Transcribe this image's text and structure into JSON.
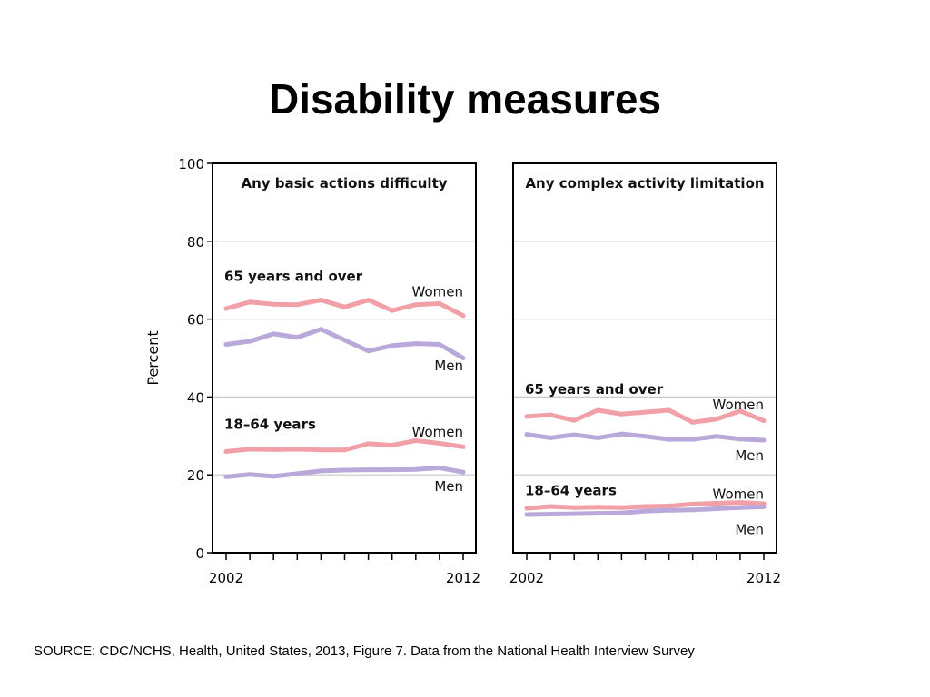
{
  "title": "Disability measures",
  "source": "SOURCE: CDC/NCHS, Health, United States, 2013, Figure 7. Data from the National Health Interview Survey",
  "colors": {
    "women": "#f0a0a6",
    "men": "#b9a9db",
    "grid": "#c8c8c8",
    "axis": "#000000"
  },
  "chart_data": [
    {
      "type": "line",
      "title": "Any basic actions difficulty",
      "ylabel": "Percent",
      "ylim": [
        0,
        100
      ],
      "yticks": [
        0,
        20,
        40,
        60,
        80,
        100
      ],
      "x": [
        2002,
        2003,
        2004,
        2005,
        2006,
        2007,
        2008,
        2009,
        2010,
        2011,
        2012
      ],
      "xtick_labels": [
        "2002",
        "2012"
      ],
      "groups": [
        {
          "label": "65 years and over",
          "label_year": 2002,
          "label_y": 71
        },
        {
          "label": "18–64 years",
          "label_year": 2002,
          "label_y": 33
        }
      ],
      "series": [
        {
          "name": "Women",
          "group": "65 years and over",
          "color_key": "women",
          "label_y": 67,
          "values": [
            62.7,
            64.4,
            63.8,
            63.7,
            64.9,
            63.1,
            64.9,
            62.2,
            63.7,
            64.0,
            60.9
          ]
        },
        {
          "name": "Men",
          "group": "65 years and over",
          "color_key": "men",
          "label_y": 48,
          "values": [
            53.5,
            54.3,
            56.2,
            55.3,
            57.4,
            54.6,
            51.8,
            53.2,
            53.7,
            53.5,
            50.0
          ]
        },
        {
          "name": "Women",
          "group": "18–64 years",
          "color_key": "women",
          "label_y": 31,
          "values": [
            26.0,
            26.6,
            26.5,
            26.6,
            26.4,
            26.4,
            28.0,
            27.6,
            28.8,
            28.1,
            27.2
          ]
        },
        {
          "name": "Men",
          "group": "18–64 years",
          "color_key": "men",
          "label_y": 17,
          "values": [
            19.5,
            20.1,
            19.6,
            20.3,
            21.0,
            21.2,
            21.3,
            21.3,
            21.4,
            21.8,
            20.7
          ]
        }
      ]
    },
    {
      "type": "line",
      "title": "Any complex activity limitation",
      "ylim": [
        0,
        100
      ],
      "yticks": [
        0,
        20,
        40,
        60,
        80,
        100
      ],
      "x": [
        2002,
        2003,
        2004,
        2005,
        2006,
        2007,
        2008,
        2009,
        2010,
        2011,
        2012
      ],
      "xtick_labels": [
        "2002",
        "2012"
      ],
      "groups": [
        {
          "label": "65 years and over",
          "label_year": 2002,
          "label_y": 42
        },
        {
          "label": "18–64 years",
          "label_year": 2002,
          "label_y": 16
        }
      ],
      "series": [
        {
          "name": "Women",
          "group": "65 years and over",
          "color_key": "women",
          "label_y": 38,
          "values": [
            35.0,
            35.4,
            34.0,
            36.6,
            35.6,
            36.1,
            36.6,
            33.5,
            34.3,
            36.4,
            33.9
          ]
        },
        {
          "name": "Men",
          "group": "65 years and over",
          "color_key": "men",
          "label_y": 25,
          "values": [
            30.4,
            29.5,
            30.3,
            29.5,
            30.5,
            29.9,
            29.1,
            29.1,
            29.9,
            29.2,
            28.9
          ]
        },
        {
          "name": "Women",
          "group": "18–64 years",
          "color_key": "women",
          "label_y": 15,
          "values": [
            11.4,
            11.9,
            11.6,
            11.7,
            11.6,
            11.9,
            12.0,
            12.5,
            12.7,
            12.9,
            12.6
          ]
        },
        {
          "name": "Men",
          "group": "18–64 years",
          "color_key": "men",
          "label_y": 6,
          "values": [
            9.8,
            9.9,
            10.0,
            10.1,
            10.2,
            10.7,
            10.9,
            11.0,
            11.3,
            11.6,
            11.8
          ]
        }
      ]
    }
  ]
}
